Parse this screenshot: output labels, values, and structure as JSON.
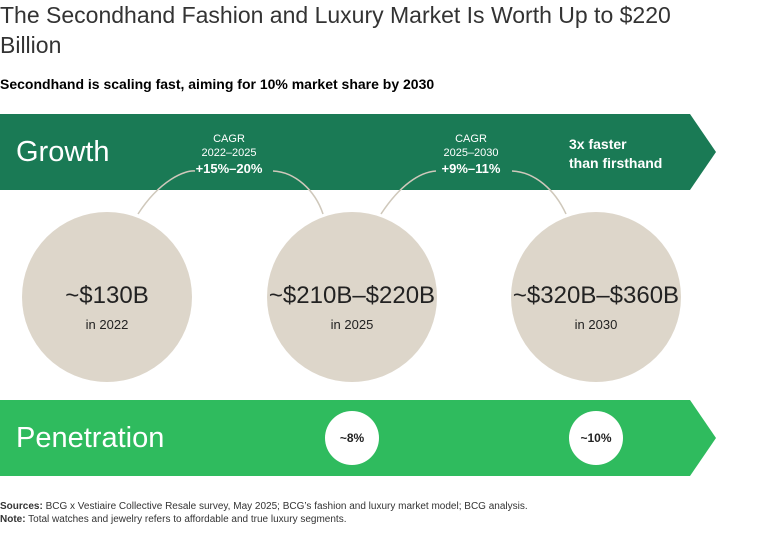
{
  "title": "The Secondhand Fashion and Luxury Market Is Worth Up to $220 Billion",
  "subtitle": "Secondhand is scaling fast, aiming for 10% market share by 2030",
  "growth": {
    "label": "Growth",
    "color": "#1a7a55",
    "cagr": [
      {
        "label": "CAGR",
        "period": "2022–2025",
        "value": "+15%–20%"
      },
      {
        "label": "CAGR",
        "period": "2025–2030",
        "value": "+9%–11%"
      }
    ],
    "callout_line1": "3x faster",
    "callout_line2": "than firsthand"
  },
  "penetration": {
    "label": "Penetration",
    "color": "#2fbb5e"
  },
  "chart_data": {
    "type": "bubble-timeline",
    "categories": [
      "2022",
      "2025",
      "2030"
    ],
    "market_size": [
      {
        "year": "2022",
        "amount": "~$130B",
        "year_label": "in 2022",
        "low": 130,
        "high": 130
      },
      {
        "year": "2025",
        "amount": "~$210B–$220B",
        "year_label": "in 2025",
        "low": 210,
        "high": 220
      },
      {
        "year": "2030",
        "amount": "~$320B–$360B",
        "year_label": "in 2030",
        "low": 320,
        "high": 360
      }
    ],
    "penetration": [
      {
        "year": "2025",
        "label": "~8%",
        "value": 8
      },
      {
        "year": "2030",
        "label": "~10%",
        "value": 10
      }
    ],
    "unit": "USD billions"
  },
  "footer": {
    "sources_label": "Sources:",
    "sources_text": " BCG x Vestiaire Collective Resale survey, May 2025; BCG’s fashion and luxury market model; BCG analysis.",
    "note_label": "Note:",
    "note_text": " Total watches and jewelry refers to affordable and true luxury segments."
  },
  "colors": {
    "circle": "#ddd6ca",
    "connector": "#cfc8bb"
  }
}
